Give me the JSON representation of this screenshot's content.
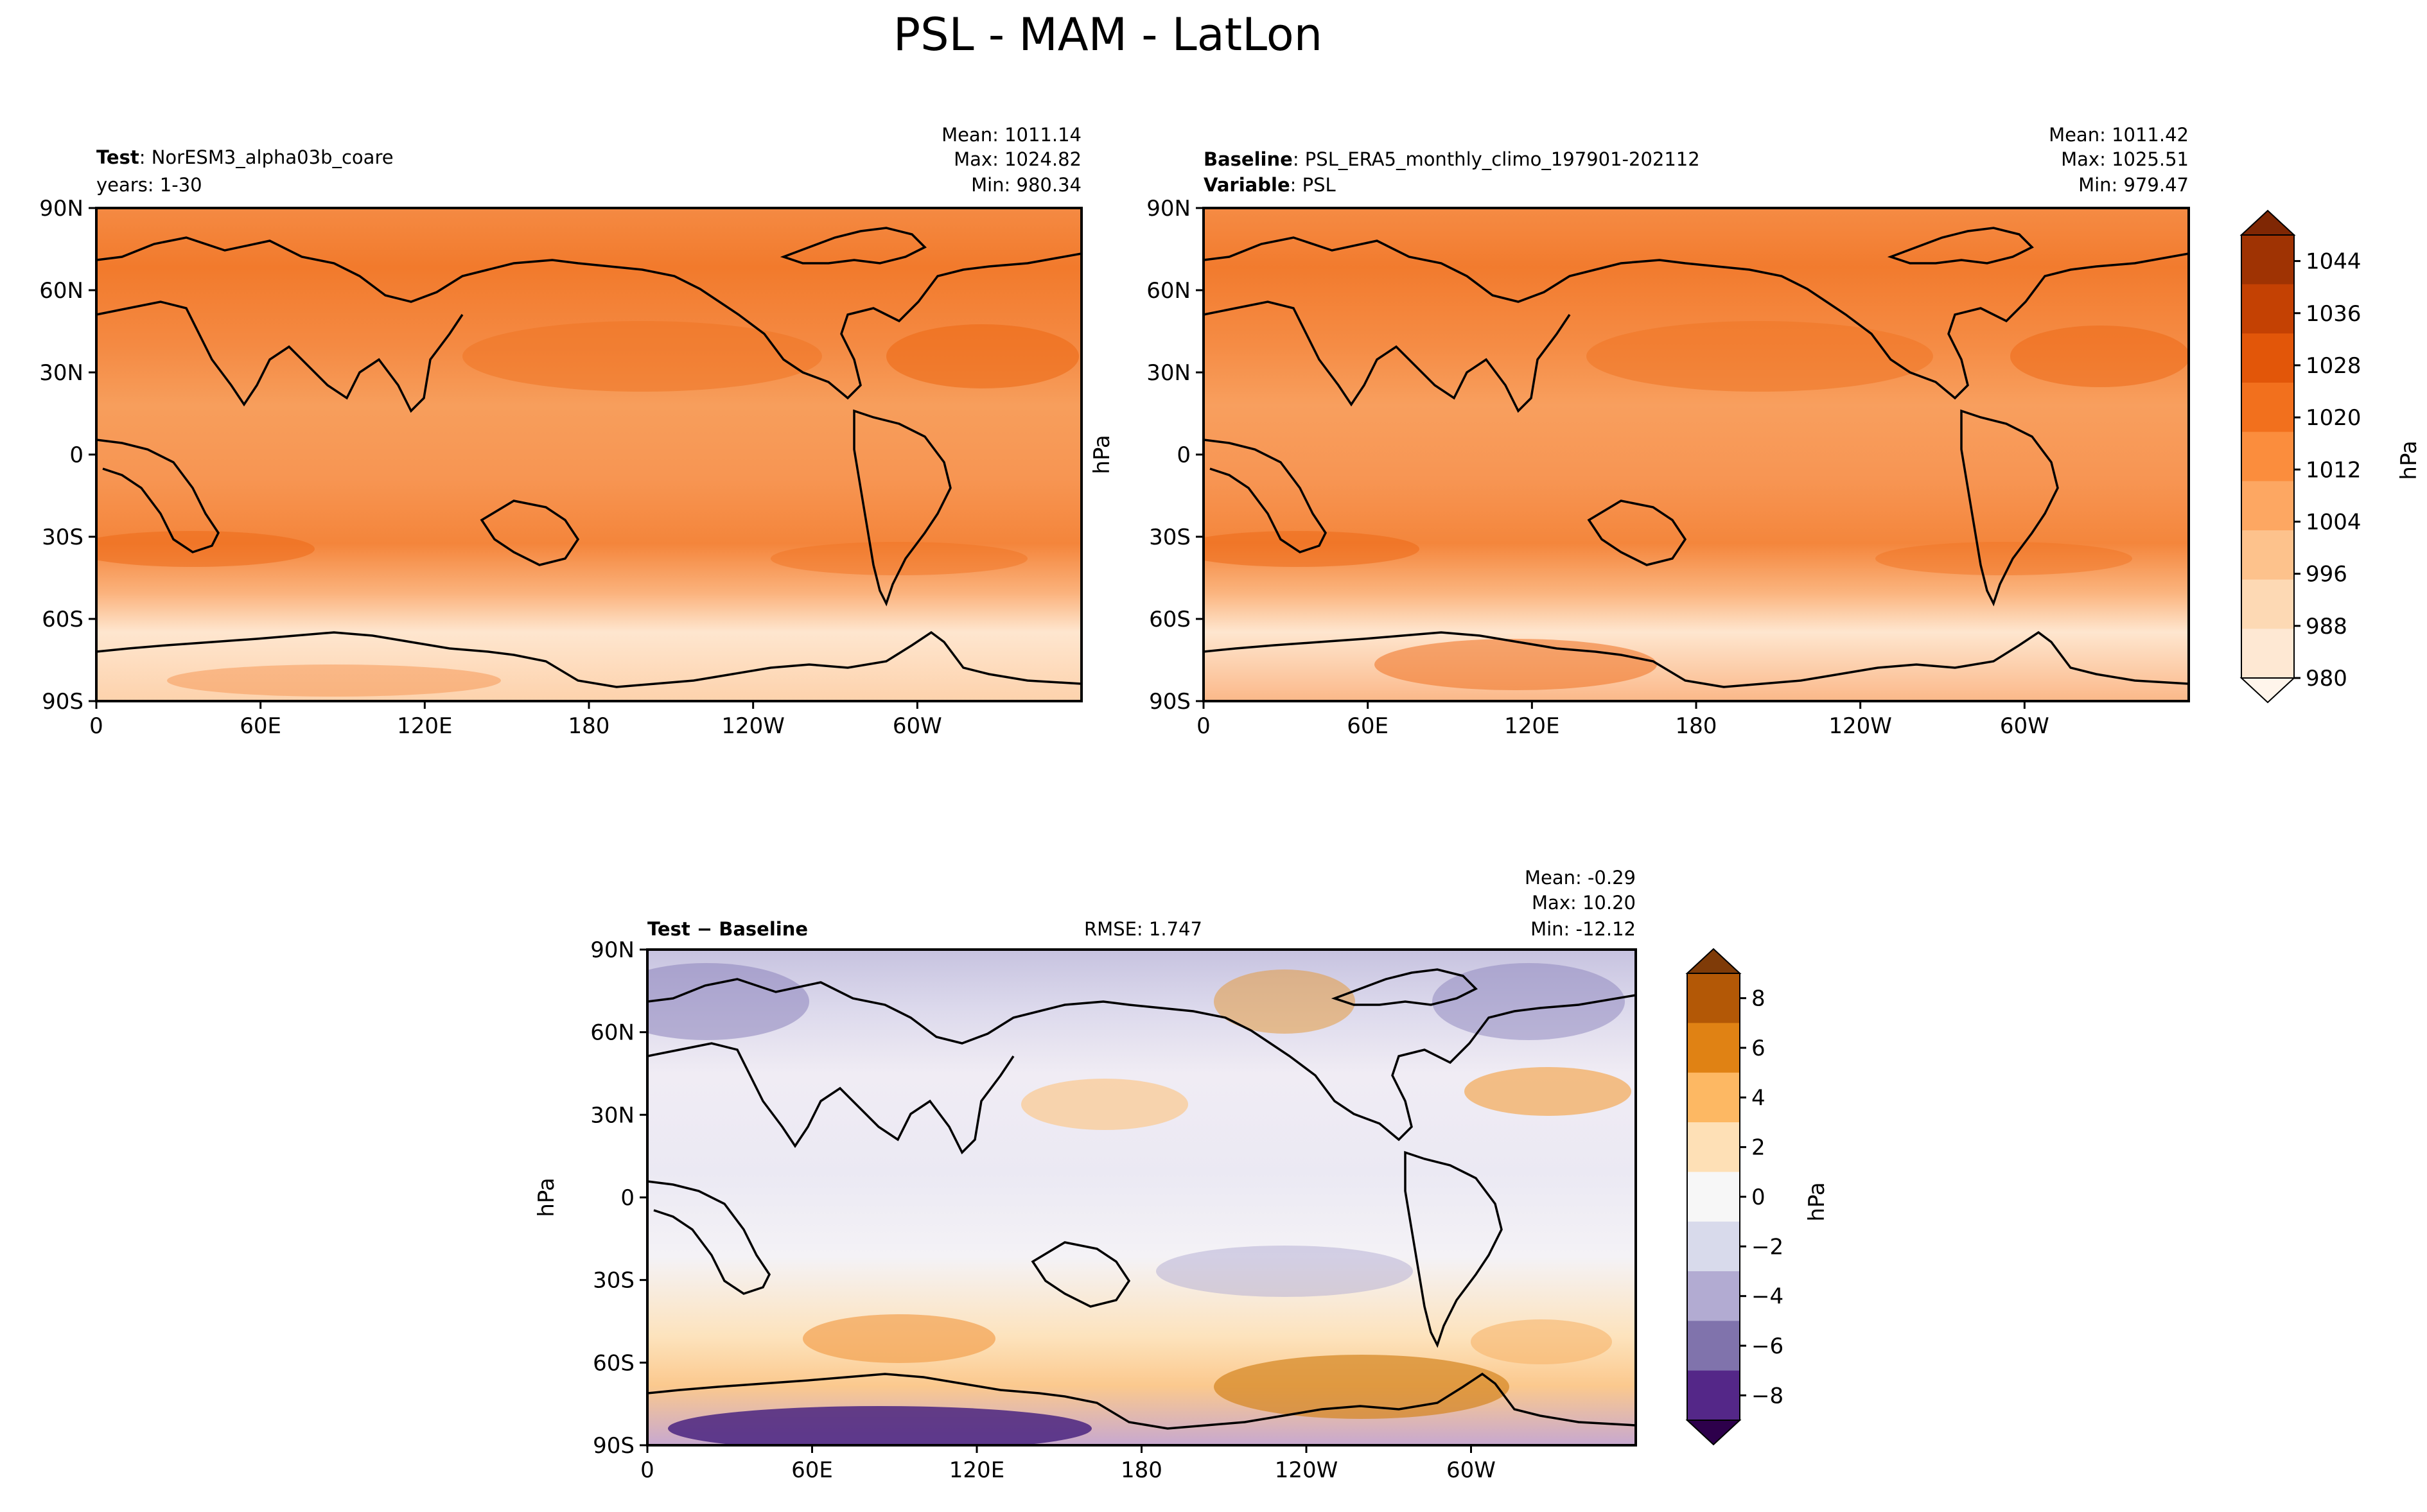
{
  "figure": {
    "title": "PSL - MAM - LatLon",
    "colors": {
      "land_line": "#000000",
      "frame": "#000000"
    }
  },
  "chart_data": [
    {
      "type": "heatmap",
      "id": "test",
      "label_bold": "Test",
      "label_rest": ": NorESM3_alpha03b_coare",
      "label2": "years: 1-30",
      "stats": {
        "mean": "Mean: 1011.14",
        "max": "Max: 1024.82",
        "min": "Min: 980.34"
      },
      "ylabel": "",
      "x_ticks": [
        "0",
        "60E",
        "120E",
        "180",
        "120W",
        "60W"
      ],
      "y_ticks": [
        "90N",
        "60N",
        "30N",
        "0",
        "30S",
        "60S",
        "90S"
      ],
      "xlim": [
        0,
        360
      ],
      "ylim": [
        -90,
        90
      ]
    },
    {
      "type": "heatmap",
      "id": "baseline",
      "label_bold": "Baseline",
      "label_rest": ": PSL_ERA5_monthly_climo_197901-202112",
      "label2_bold": "Variable",
      "label2_rest": ": PSL",
      "stats": {
        "mean": "Mean: 1011.42",
        "max": "Max: 1025.51",
        "min": "Min: 979.47"
      },
      "ylabel": "hPa",
      "x_ticks": [
        "0",
        "60E",
        "120E",
        "180",
        "120W",
        "60W"
      ],
      "y_ticks": [
        "90N",
        "60N",
        "30N",
        "0",
        "30S",
        "60S",
        "90S"
      ],
      "xlim": [
        0,
        360
      ],
      "ylim": [
        -90,
        90
      ]
    },
    {
      "type": "heatmap",
      "id": "diff",
      "label_bold": "Test − Baseline",
      "rmse": "RMSE: 1.747",
      "stats": {
        "mean": "Mean: -0.29",
        "max": "Max: 10.20",
        "min": "Min: -12.12"
      },
      "ylabel": "hPa",
      "x_ticks": [
        "0",
        "60E",
        "120E",
        "180",
        "120W",
        "60W"
      ],
      "y_ticks": [
        "90N",
        "60N",
        "30N",
        "0",
        "30S",
        "60S",
        "90S"
      ],
      "xlim": [
        0,
        360
      ],
      "ylim": [
        -90,
        90
      ]
    }
  ],
  "colorbars": {
    "main": {
      "label": "hPa",
      "range": [
        980,
        1048
      ],
      "ticks": [
        "980",
        "988",
        "996",
        "1004",
        "1012",
        "1020",
        "1028",
        "1036",
        "1044"
      ],
      "tick_values": [
        980,
        988,
        996,
        1004,
        1012,
        1020,
        1028,
        1036,
        1044
      ],
      "colors": [
        "#fff5eb",
        "#fee8d3",
        "#fdd9b4",
        "#fdc28c",
        "#fda762",
        "#fb8d3d",
        "#f2701d",
        "#e25609",
        "#c44103",
        "#9f3303",
        "#7f2704"
      ]
    },
    "diff": {
      "label": "hPa",
      "range": [
        -9,
        9
      ],
      "ticks": [
        "−8",
        "−6",
        "−4",
        "−2",
        "0",
        "2",
        "4",
        "6",
        "8"
      ],
      "tick_values": [
        -8,
        -6,
        -4,
        -2,
        0,
        2,
        4,
        6,
        8
      ],
      "colors": [
        "#2d004b",
        "#542788",
        "#8073ac",
        "#b2abd2",
        "#d8daeb",
        "#f7f7f7",
        "#fee0b6",
        "#fdb863",
        "#e08214",
        "#b35806",
        "#7f3b08"
      ]
    }
  }
}
